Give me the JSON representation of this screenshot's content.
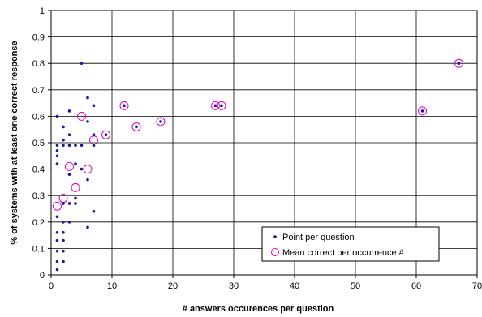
{
  "chart_data": {
    "type": "scatter",
    "title": "",
    "xlabel": "# answers occurences per question",
    "ylabel": "% of systems with at least one correct response",
    "xlim": [
      0,
      70
    ],
    "ylim": [
      0,
      1
    ],
    "x_ticks": [
      "0",
      "10",
      "20",
      "30",
      "40",
      "50",
      "60",
      "70"
    ],
    "y_ticks": [
      "0",
      "0.1",
      "0.2",
      "0.3",
      "0.4",
      "0.5",
      "0.6",
      "0.7",
      "0.8",
      "0.9",
      "1"
    ],
    "grid": true,
    "legend_position": "bottom-right",
    "colors": {
      "points": "#1a1a9e",
      "means": "#e600c8",
      "grid": "#000000"
    },
    "series": [
      {
        "name": "Point per question",
        "marker": "dot",
        "points": [
          [
            1,
            0.02
          ],
          [
            1,
            0.05
          ],
          [
            1,
            0.09
          ],
          [
            1,
            0.13
          ],
          [
            1,
            0.16
          ],
          [
            1,
            0.22
          ],
          [
            1,
            0.42
          ],
          [
            1,
            0.45
          ],
          [
            1,
            0.47
          ],
          [
            1,
            0.49
          ],
          [
            1,
            0.6
          ],
          [
            2,
            0.05
          ],
          [
            2,
            0.09
          ],
          [
            2,
            0.13
          ],
          [
            2,
            0.16
          ],
          [
            2,
            0.2
          ],
          [
            2,
            0.27
          ],
          [
            2,
            0.49
          ],
          [
            2,
            0.51
          ],
          [
            2,
            0.56
          ],
          [
            3,
            0.2
          ],
          [
            3,
            0.27
          ],
          [
            3,
            0.38
          ],
          [
            3,
            0.49
          ],
          [
            3,
            0.53
          ],
          [
            3,
            0.62
          ],
          [
            4,
            0.27
          ],
          [
            4,
            0.29
          ],
          [
            4,
            0.42
          ],
          [
            4,
            0.49
          ],
          [
            5,
            0.4
          ],
          [
            5,
            0.49
          ],
          [
            5,
            0.8
          ],
          [
            6,
            0.18
          ],
          [
            6,
            0.36
          ],
          [
            6,
            0.58
          ],
          [
            6,
            0.67
          ],
          [
            7,
            0.24
          ],
          [
            7,
            0.49
          ],
          [
            7,
            0.53
          ],
          [
            7,
            0.64
          ],
          [
            9,
            0.53
          ],
          [
            12,
            0.64
          ],
          [
            14,
            0.56
          ],
          [
            18,
            0.58
          ],
          [
            27,
            0.64
          ],
          [
            28,
            0.64
          ],
          [
            61,
            0.62
          ],
          [
            67,
            0.8
          ]
        ]
      },
      {
        "name": "Mean correct per occurrence #",
        "marker": "circle",
        "points": [
          [
            1,
            0.26
          ],
          [
            2,
            0.29
          ],
          [
            3,
            0.41
          ],
          [
            4,
            0.33
          ],
          [
            5,
            0.6
          ],
          [
            6,
            0.4
          ],
          [
            7,
            0.51
          ],
          [
            9,
            0.53
          ],
          [
            12,
            0.64
          ],
          [
            14,
            0.56
          ],
          [
            18,
            0.58
          ],
          [
            27,
            0.64
          ],
          [
            28,
            0.64
          ],
          [
            61,
            0.62
          ],
          [
            67,
            0.8
          ]
        ]
      }
    ]
  }
}
